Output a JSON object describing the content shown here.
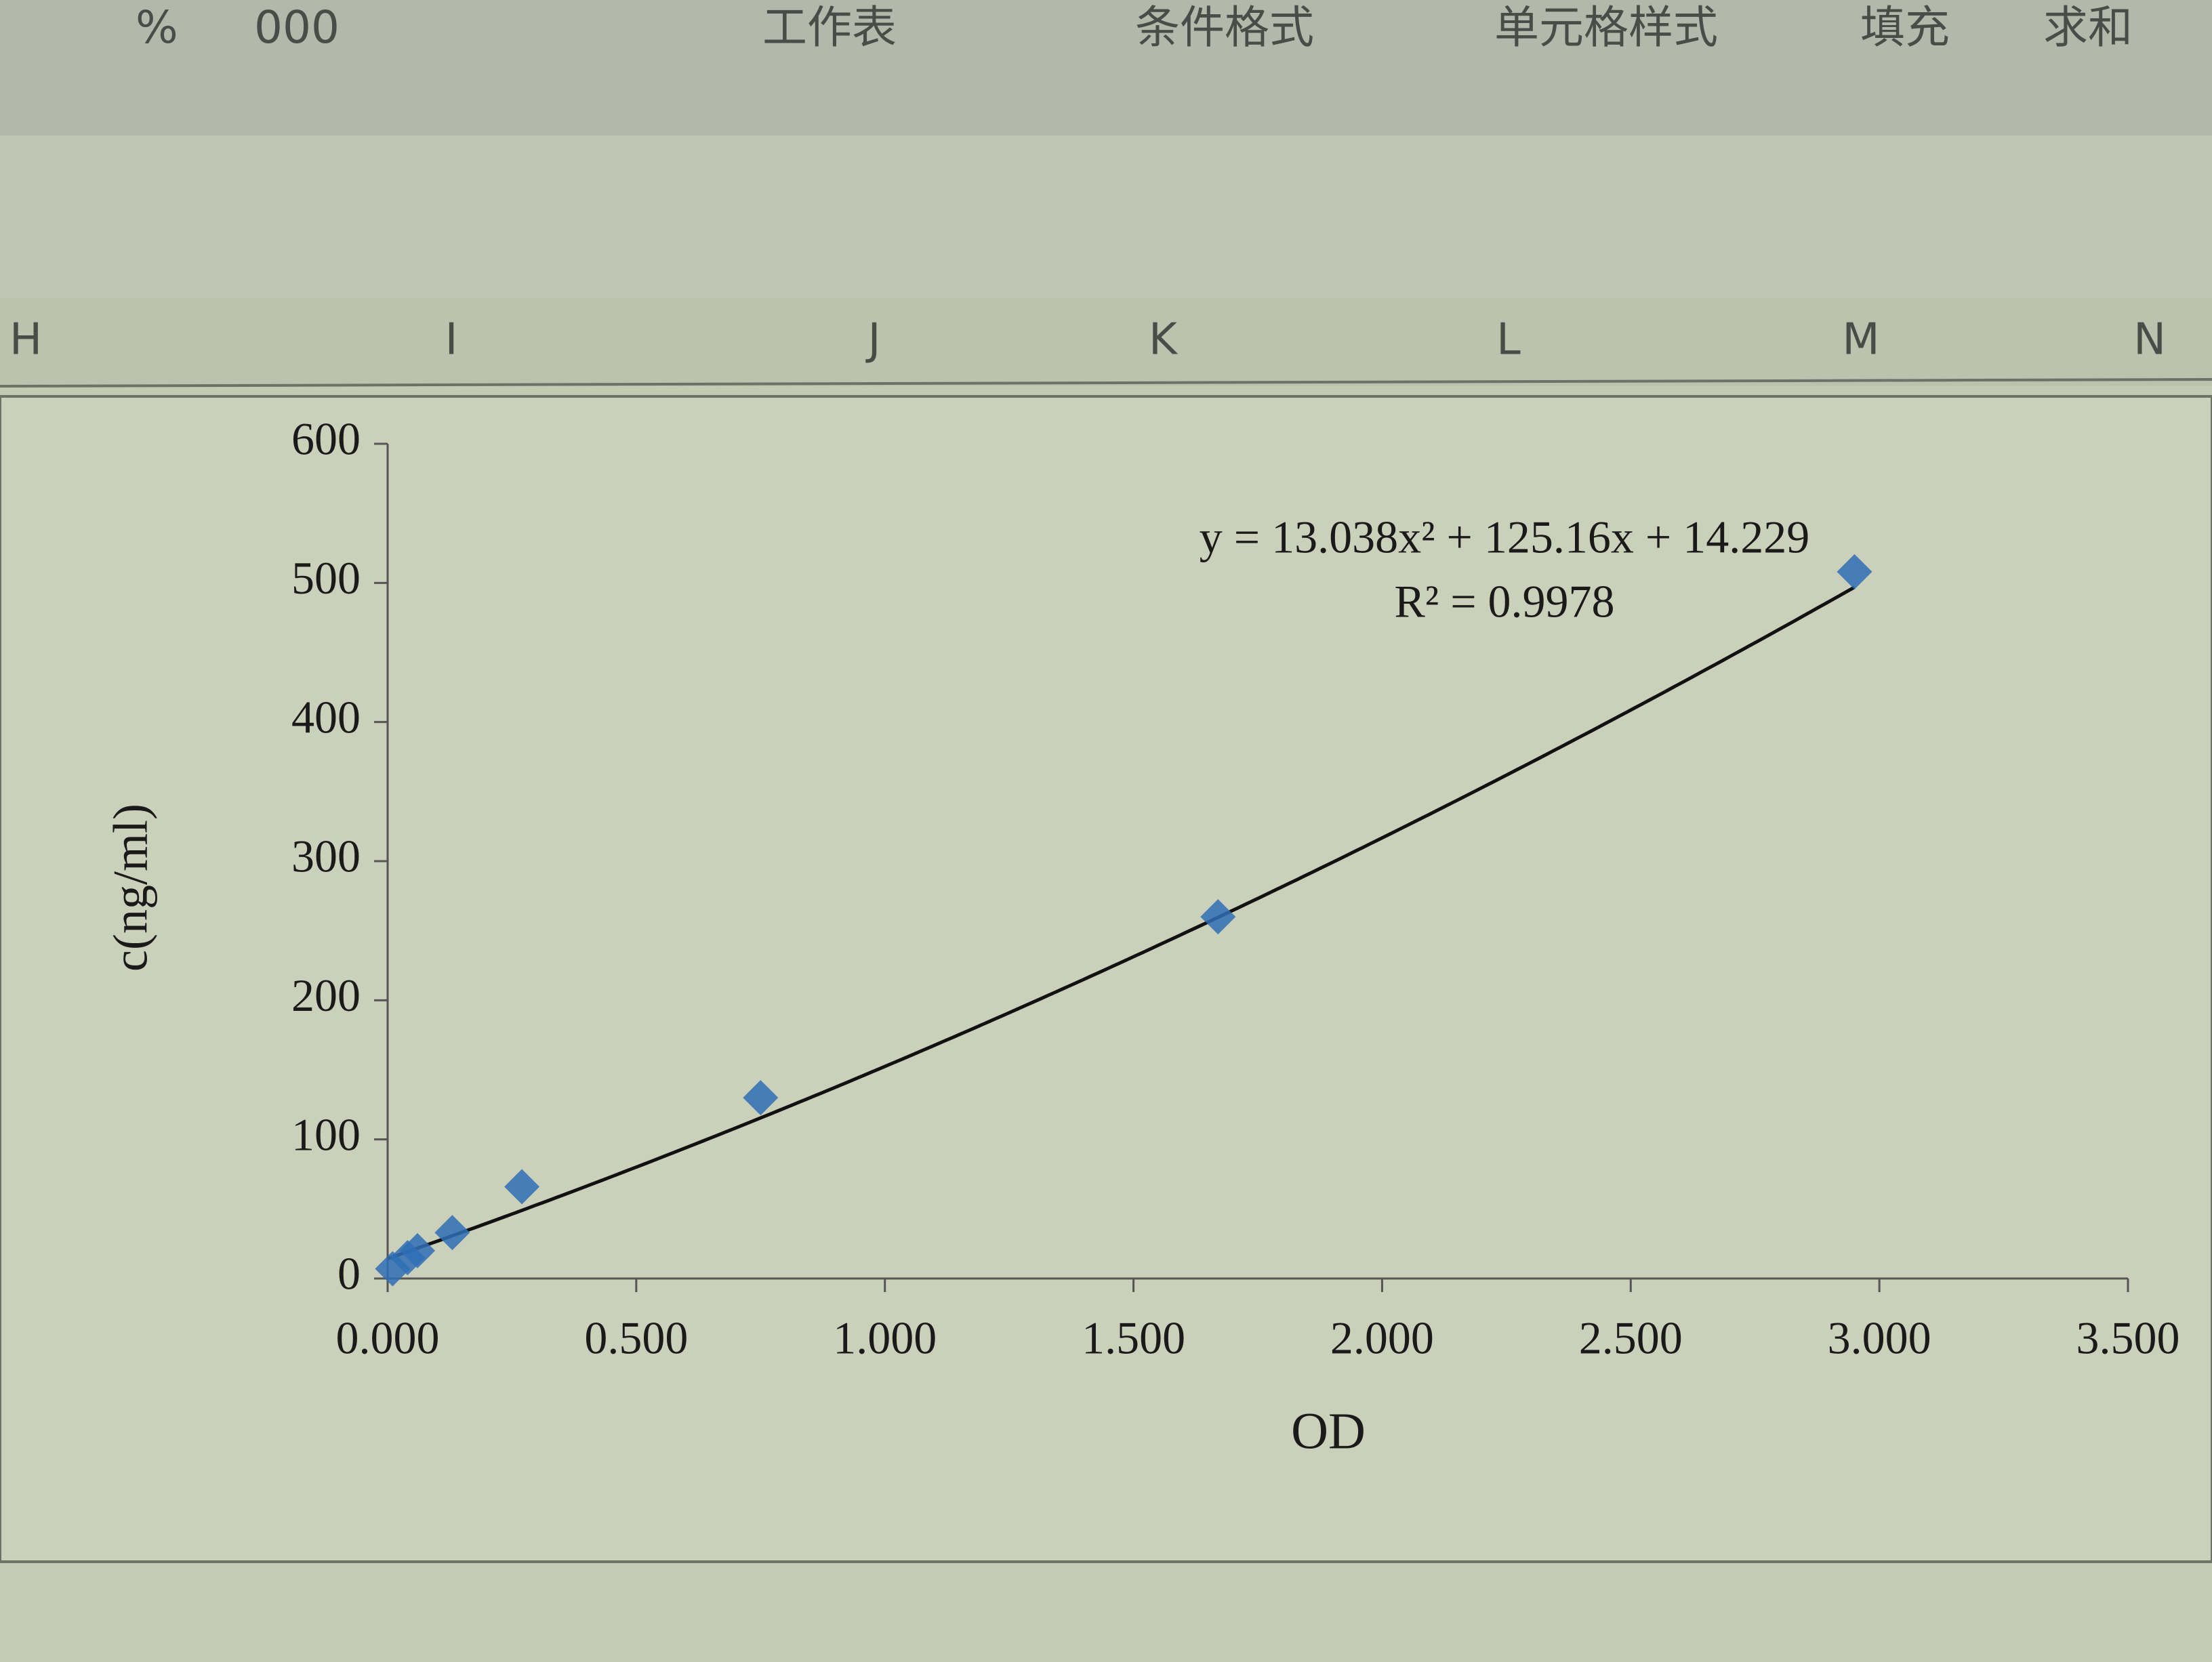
{
  "toolbar": [
    "%",
    "000",
    "工作表",
    "条件格式",
    "单元格样式",
    "填充",
    "求和"
  ],
  "columns": [
    "H",
    "I",
    "J",
    "K",
    "L",
    "M",
    "N"
  ],
  "chart_data": {
    "type": "scatter",
    "x_label": "OD",
    "y_label": "c(ng/ml)",
    "x": [
      0.01,
      0.04,
      0.06,
      0.13,
      0.27,
      0.75,
      1.67,
      2.95
    ],
    "series": [
      {
        "name": "c(ng/ml)",
        "color": "#2f6eb5",
        "values": [
          7,
          15,
          20,
          33,
          66,
          130,
          260,
          508
        ]
      }
    ],
    "trendline": {
      "type": "polynomial",
      "color": "#111111",
      "coefficients": [
        13.038,
        125.16,
        14.229
      ],
      "equation": "y = 13.038x² + 125.16x + 14.229",
      "r_squared": "R² = 0.9978"
    },
    "xlim": [
      0,
      3.5
    ],
    "xticks": [
      {
        "value": 0,
        "label": "0.000"
      },
      {
        "value": 0.5,
        "label": "0.500"
      },
      {
        "value": 1,
        "label": "1.000"
      },
      {
        "value": 1.5,
        "label": "1.500"
      },
      {
        "value": 2,
        "label": "2.000"
      },
      {
        "value": 2.5,
        "label": "2.500"
      },
      {
        "value": 3,
        "label": "3.000"
      },
      {
        "value": 3.5,
        "label": "3.500"
      }
    ],
    "ylim": [
      0,
      600
    ],
    "yticks": [
      0,
      100,
      200,
      300,
      400,
      500,
      600
    ]
  }
}
